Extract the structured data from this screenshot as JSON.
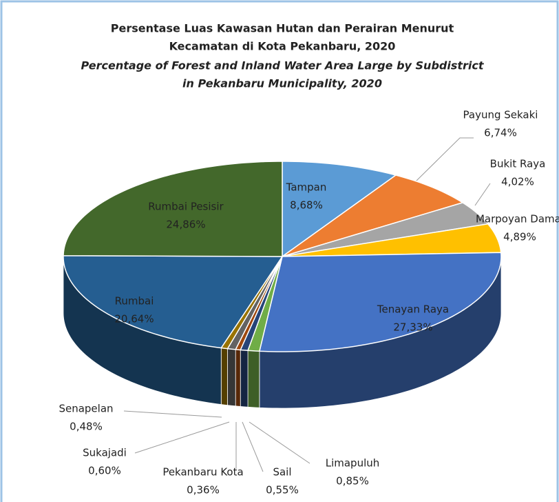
{
  "chart_data": {
    "type": "pie3d",
    "title": [
      "Persentase Luas Kawasan Hutan dan Perairan Menurut",
      "Kecamatan di Kota Pekanbaru, 2020"
    ],
    "subtitle": [
      "Percentage of Forest and Inland Water Area Large by Subdistrict",
      "in Pekanbaru Municipality, 2020"
    ],
    "categories": [
      "Tampan",
      "Payung Sekaki",
      "Bukit Raya",
      "Marpoyan Damai",
      "Tenayan Raya",
      "Limapuluh",
      "Sail",
      "Pekanbaru Kota",
      "Sukajadi",
      "Senapelan",
      "Rumbai",
      "Rumbai Pesisir"
    ],
    "values": [
      8.68,
      6.74,
      4.02,
      4.89,
      27.33,
      0.85,
      0.55,
      0.36,
      0.6,
      0.48,
      20.64,
      24.86
    ],
    "value_labels": [
      "8,68%",
      "6,74%",
      "4,02%",
      "4,89%",
      "27,33%",
      "0,85%",
      "0,55%",
      "0,36%",
      "0,60%",
      "0,48%",
      "20,64%",
      "24,86%"
    ],
    "colors": [
      "#5b9bd5",
      "#ed7d31",
      "#a5a5a5",
      "#ffc000",
      "#4472c4",
      "#70ad47",
      "#264478",
      "#9e480e",
      "#636363",
      "#997300",
      "#255e91",
      "#43682b"
    ]
  }
}
